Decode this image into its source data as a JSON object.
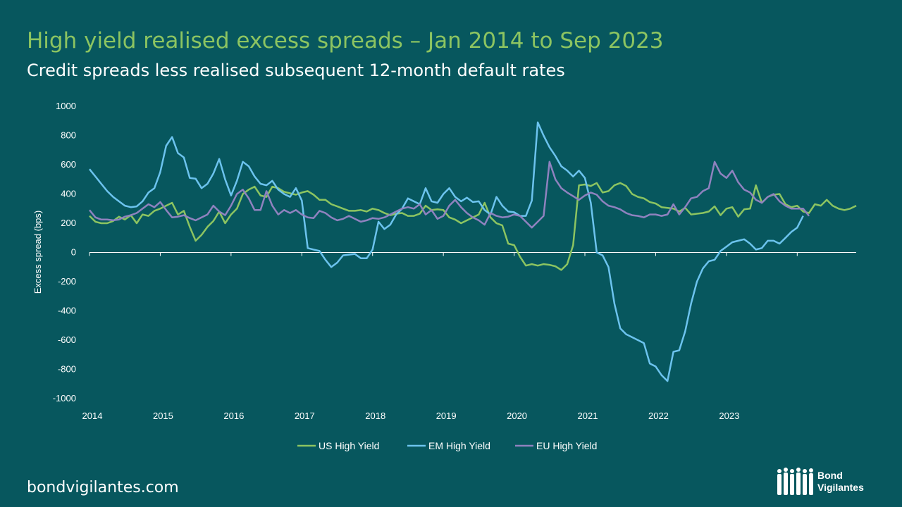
{
  "title": "High yield realised excess spreads – Jan 2014 to Sep 2023",
  "subtitle": "Credit spreads less realised subsequent 12-month default rates",
  "footer_url": "bondvigilantes.com",
  "logo_text": [
    "Bond",
    "Vigilantes"
  ],
  "chart_data": {
    "type": "line",
    "ylabel": "Excess spread (bps)",
    "ylim": [
      -1000,
      1000
    ],
    "yticks": [
      1000,
      800,
      600,
      400,
      200,
      0,
      -200,
      -400,
      -600,
      -800,
      -1000
    ],
    "xticks": [
      "2014",
      "2015",
      "2016",
      "2017",
      "2018",
      "2019",
      "2020",
      "2021",
      "2022",
      "2023"
    ],
    "x_start": "2014-01",
    "x_end": "2023-09",
    "grid": false,
    "legend_position": "bottom",
    "series": [
      {
        "name": "US High Yield",
        "color": "#8cc461",
        "values": [
          250,
          210,
          200,
          200,
          215,
          245,
          225,
          255,
          200,
          260,
          250,
          285,
          300,
          320,
          340,
          260,
          285,
          175,
          80,
          120,
          175,
          215,
          280,
          200,
          260,
          300,
          400,
          430,
          450,
          390,
          380,
          450,
          440,
          415,
          405,
          395,
          410,
          420,
          395,
          360,
          360,
          330,
          315,
          300,
          285,
          285,
          290,
          280,
          300,
          290,
          270,
          255,
          265,
          270,
          250,
          250,
          265,
          320,
          290,
          295,
          290,
          240,
          225,
          200,
          220,
          240,
          260,
          340,
          240,
          200,
          185,
          60,
          50,
          -30,
          -90,
          -80,
          -90,
          -80,
          -85,
          -95,
          -120,
          -80,
          50,
          460,
          465,
          455,
          475,
          410,
          420,
          460,
          475,
          455,
          400,
          380,
          370,
          345,
          335,
          310,
          305,
          300,
          280,
          305,
          260,
          265,
          270,
          280,
          315,
          255,
          300,
          310,
          245,
          295,
          300,
          460,
          340,
          380,
          395,
          400,
          330,
          310,
          320,
          280,
          270,
          330,
          320,
          360,
          320,
          300,
          290,
          300,
          320
        ]
      },
      {
        "name": "EM High Yield",
        "color": "#6cc3ee",
        "values": [
          570,
          520,
          470,
          420,
          380,
          350,
          320,
          310,
          315,
          350,
          410,
          440,
          550,
          730,
          790,
          680,
          650,
          510,
          505,
          440,
          470,
          540,
          640,
          500,
          390,
          490,
          620,
          590,
          520,
          470,
          460,
          490,
          430,
          400,
          380,
          440,
          355,
          30,
          20,
          10,
          -50,
          -100,
          -70,
          -20,
          -15,
          -10,
          -40,
          -40,
          20,
          210,
          160,
          190,
          260,
          300,
          370,
          350,
          330,
          440,
          350,
          340,
          400,
          440,
          380,
          350,
          375,
          345,
          350,
          290,
          260,
          380,
          320,
          280,
          275,
          250,
          250,
          355,
          890,
          800,
          720,
          660,
          590,
          560,
          520,
          560,
          510,
          340,
          0,
          -20,
          -100,
          -350,
          -520,
          -560,
          -580,
          -600,
          -620,
          -760,
          -780,
          -840,
          -880,
          -680,
          -670,
          -540,
          -350,
          -200,
          -110,
          -60,
          -50,
          10,
          40,
          70,
          80,
          90,
          60,
          20,
          30,
          80,
          80,
          60,
          100,
          140,
          170,
          250
        ]
      },
      {
        "name": "EU High Yield",
        "color": "#8f82bf",
        "values": [
          290,
          240,
          225,
          225,
          220,
          225,
          245,
          255,
          270,
          300,
          330,
          310,
          345,
          290,
          240,
          245,
          255,
          235,
          220,
          240,
          260,
          320,
          280,
          255,
          320,
          400,
          430,
          370,
          290,
          290,
          420,
          320,
          260,
          290,
          270,
          290,
          260,
          240,
          235,
          285,
          270,
          240,
          220,
          230,
          250,
          230,
          210,
          220,
          235,
          230,
          240,
          260,
          280,
          300,
          310,
          300,
          330,
          260,
          290,
          230,
          250,
          320,
          360,
          310,
          270,
          240,
          220,
          190,
          270,
          250,
          240,
          245,
          260,
          250,
          210,
          170,
          210,
          250,
          620,
          500,
          440,
          410,
          385,
          360,
          390,
          410,
          395,
          350,
          320,
          310,
          295,
          270,
          255,
          250,
          240,
          260,
          260,
          250,
          260,
          330,
          260,
          310,
          370,
          380,
          420,
          440,
          620,
          540,
          510,
          560,
          480,
          430,
          410,
          360,
          340,
          380,
          400,
          350,
          320,
          300,
          300,
          300,
          250
        ]
      }
    ]
  }
}
